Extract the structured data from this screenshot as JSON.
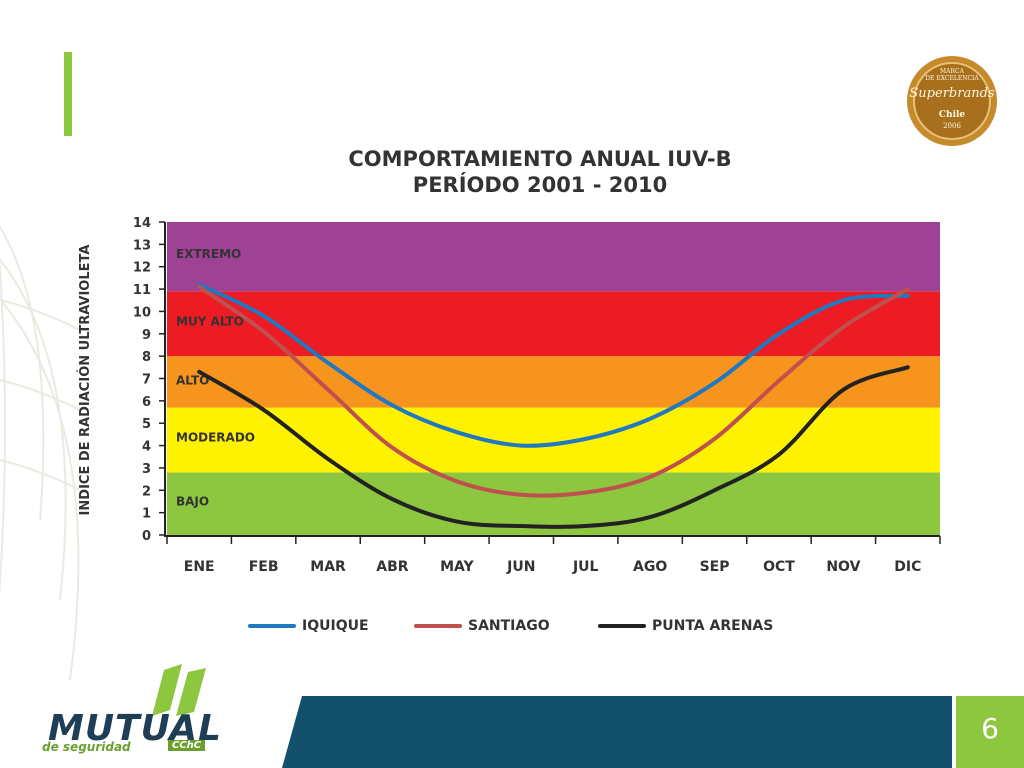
{
  "slide": {
    "page_number": "6"
  },
  "seal": {
    "line1": "MARCA",
    "line2": "DE EXCELENCIA",
    "brand": "Superbrands",
    "country": "Chile",
    "year": "2006"
  },
  "logo": {
    "word": "MUTUAL",
    "sub": "de seguridad",
    "tag": "CChC"
  },
  "colors": {
    "accent_green": "#8dc63f",
    "footer_blue": "#13506b",
    "extremo": "#9e4295",
    "muy_alto": "#ed1c24",
    "alto": "#f7941d",
    "moderado": "#fff200",
    "bajo": "#8dc63f"
  },
  "chart_data": {
    "type": "line",
    "title_line1": "COMPORTAMIENTO ANUAL IUV-B",
    "title_line2": "PERÍODO 2001 - 2010",
    "xlabel": "",
    "ylabel": "INDICE DE RADIACIÓN ULTRAVIOLETA",
    "ylim": [
      0,
      14
    ],
    "yticks": [
      "0",
      "1",
      "2",
      "3",
      "4",
      "5",
      "6",
      "7",
      "8",
      "9",
      "10",
      "11",
      "12",
      "13",
      "14"
    ],
    "categories": [
      "ENE",
      "FEB",
      "MAR",
      "ABR",
      "MAY",
      "JUN",
      "JUL",
      "AGO",
      "SEP",
      "OCT",
      "NOV",
      "DIC"
    ],
    "bands": [
      {
        "label": "BAJO",
        "from": 0,
        "to": 2.8,
        "color": "#8dc63f"
      },
      {
        "label": "MODERADO",
        "from": 2.8,
        "to": 5.7,
        "color": "#fff200"
      },
      {
        "label": "ALTO",
        "from": 5.7,
        "to": 8,
        "color": "#f7941d"
      },
      {
        "label": "MUY ALTO",
        "from": 8,
        "to": 10.9,
        "color": "#ed1c24"
      },
      {
        "label": "EXTREMO",
        "from": 10.9,
        "to": 14,
        "color": "#9e4295"
      }
    ],
    "series": [
      {
        "name": "IQUIQUE",
        "color": "#1f78c1",
        "values": [
          11.2,
          9.8,
          7.7,
          5.8,
          4.6,
          4.0,
          4.3,
          5.2,
          6.8,
          9.0,
          10.5,
          10.7
        ]
      },
      {
        "name": "SANTIAGO",
        "color": "#c0504d",
        "values": [
          11.1,
          9.1,
          6.5,
          3.9,
          2.4,
          1.8,
          1.9,
          2.6,
          4.3,
          6.9,
          9.3,
          11.0
        ]
      },
      {
        "name": "PUNTA ARENAS",
        "color": "#222222",
        "values": [
          7.3,
          5.6,
          3.4,
          1.6,
          0.6,
          0.4,
          0.4,
          0.8,
          2.0,
          3.6,
          6.5,
          7.5
        ]
      }
    ],
    "legend": "bottom"
  }
}
